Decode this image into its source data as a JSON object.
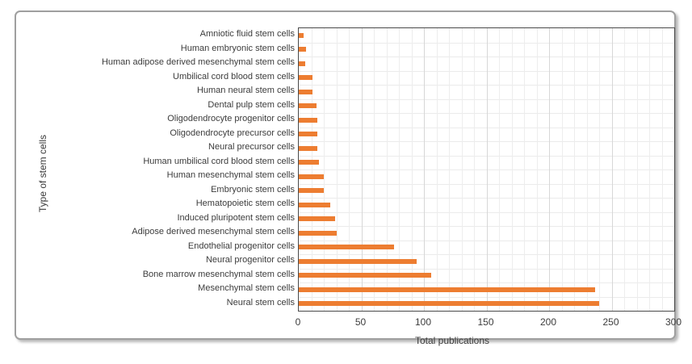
{
  "chart_data": {
    "type": "bar",
    "orientation": "horizontal",
    "title": "",
    "xlabel": "Total publications",
    "ylabel": "Type of stem cells",
    "xlim": [
      0,
      300
    ],
    "xticks": [
      0,
      50,
      100,
      150,
      200,
      250,
      300
    ],
    "grid": {
      "minor_step": 10,
      "major_step": 50,
      "horizontal_row_lines": true
    },
    "legend": "none",
    "bar_color": "#ED7D31",
    "categories": [
      "Amniotic fluid stem cells",
      "Human embryonic stem cells",
      "Human adipose derived mesenchymal stem cells",
      "Umbilical cord blood stem cells",
      "Human neural stem cells",
      "Dental pulp stem cells",
      "Oligodendrocyte progenitor cells",
      "Oligodendrocyte precursor cells",
      "Neural precursor cells",
      "Human umbilical cord blood stem cells",
      "Human mesenchymal stem cells",
      "Embryonic stem cells",
      "Hematopoietic stem cells",
      "Induced pluripotent stem cells",
      "Adipose derived mesenchymal stem cells",
      "Endothelial progenitor cells",
      "Neural progenitor cells",
      "Bone marrow mesenchymal stem cells",
      "Mesenchymal stem cells",
      "Neural stem cells"
    ],
    "values": [
      4,
      6,
      5,
      11,
      11,
      14,
      15,
      15,
      15,
      16,
      20,
      20,
      25,
      29,
      30,
      76,
      94,
      106,
      237,
      240
    ]
  },
  "frame": {
    "border_color": "#9f9f9f",
    "plot_border_color": "#4a4a4a",
    "gridline_minor_color": "#ededed",
    "gridline_major_color": "#d7d7d7",
    "text_color": "#3c3c3c"
  }
}
